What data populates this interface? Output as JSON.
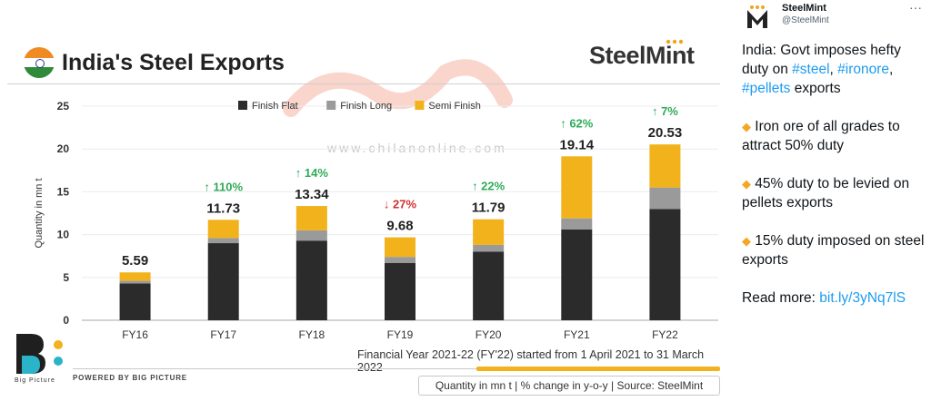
{
  "infographic": {
    "title": "India's Steel Exports",
    "brand": "SteelMint",
    "watermark_url": "www.chilanonline.com",
    "caption": "Financial Year 2021-22 (FY'22) started from 1 April 2021 to 31 March 2022",
    "powered_by": "POWERED BY BIG PICTURE",
    "big_picture_label": "Big Picture",
    "footer_note": "Quantity in mn t  |  % change in y-o-y  |  Source: SteelMint"
  },
  "chart_data": {
    "type": "bar",
    "stacked": true,
    "ylabel": "Quantity in mn t",
    "ylim": [
      0,
      25
    ],
    "yticks": [
      0,
      5,
      10,
      15,
      20,
      25
    ],
    "categories": [
      "FY16",
      "FY17",
      "FY18",
      "FY19",
      "FY20",
      "FY21",
      "FY22"
    ],
    "totals": [
      "5.59",
      "11.73",
      "13.34",
      "9.68",
      "11.79",
      "19.14",
      "20.53"
    ],
    "yoy_change": [
      {
        "text": "",
        "dir": ""
      },
      {
        "text": "110%",
        "dir": "up"
      },
      {
        "text": "14%",
        "dir": "up"
      },
      {
        "text": "27%",
        "dir": "down"
      },
      {
        "text": "22%",
        "dir": "up"
      },
      {
        "text": "62%",
        "dir": "up"
      },
      {
        "text": "7%",
        "dir": "up"
      }
    ],
    "series": [
      {
        "name": "Finish Flat",
        "color": "#2b2b2b",
        "values": [
          4.3,
          9.0,
          9.3,
          6.7,
          8.0,
          10.6,
          13.0
        ]
      },
      {
        "name": "Finish Long",
        "color": "#9a9a9a",
        "values": [
          0.3,
          0.6,
          1.2,
          0.7,
          0.8,
          1.3,
          2.5
        ]
      },
      {
        "name": "Semi Finish",
        "color": "#f2b21b",
        "values": [
          0.99,
          2.13,
          2.84,
          2.28,
          2.99,
          7.24,
          5.03
        ]
      }
    ],
    "legend_position": "top-right",
    "colors": {
      "up": "#2faa5a",
      "down": "#d32f2f"
    }
  },
  "tweet": {
    "author_name": "SteelMint",
    "author_handle": "@SteelMint",
    "more_label": "···",
    "intro_prefix": "India: Govt imposes hefty duty on ",
    "tag_steel": "#steel",
    "sep1": ", ",
    "tag_ironore": "#ironore",
    "sep2": ", ",
    "tag_pellets": "#pellets",
    "intro_suffix": " exports",
    "diamond": "◆",
    "bullet1": " Iron ore of all grades to attract 50% duty",
    "bullet2": " 45% duty to be levied on pellets exports",
    "bullet3": " 15% duty imposed on steel exports",
    "read_more": "Read more: ",
    "link": "bit.ly/3yNq7lS"
  }
}
